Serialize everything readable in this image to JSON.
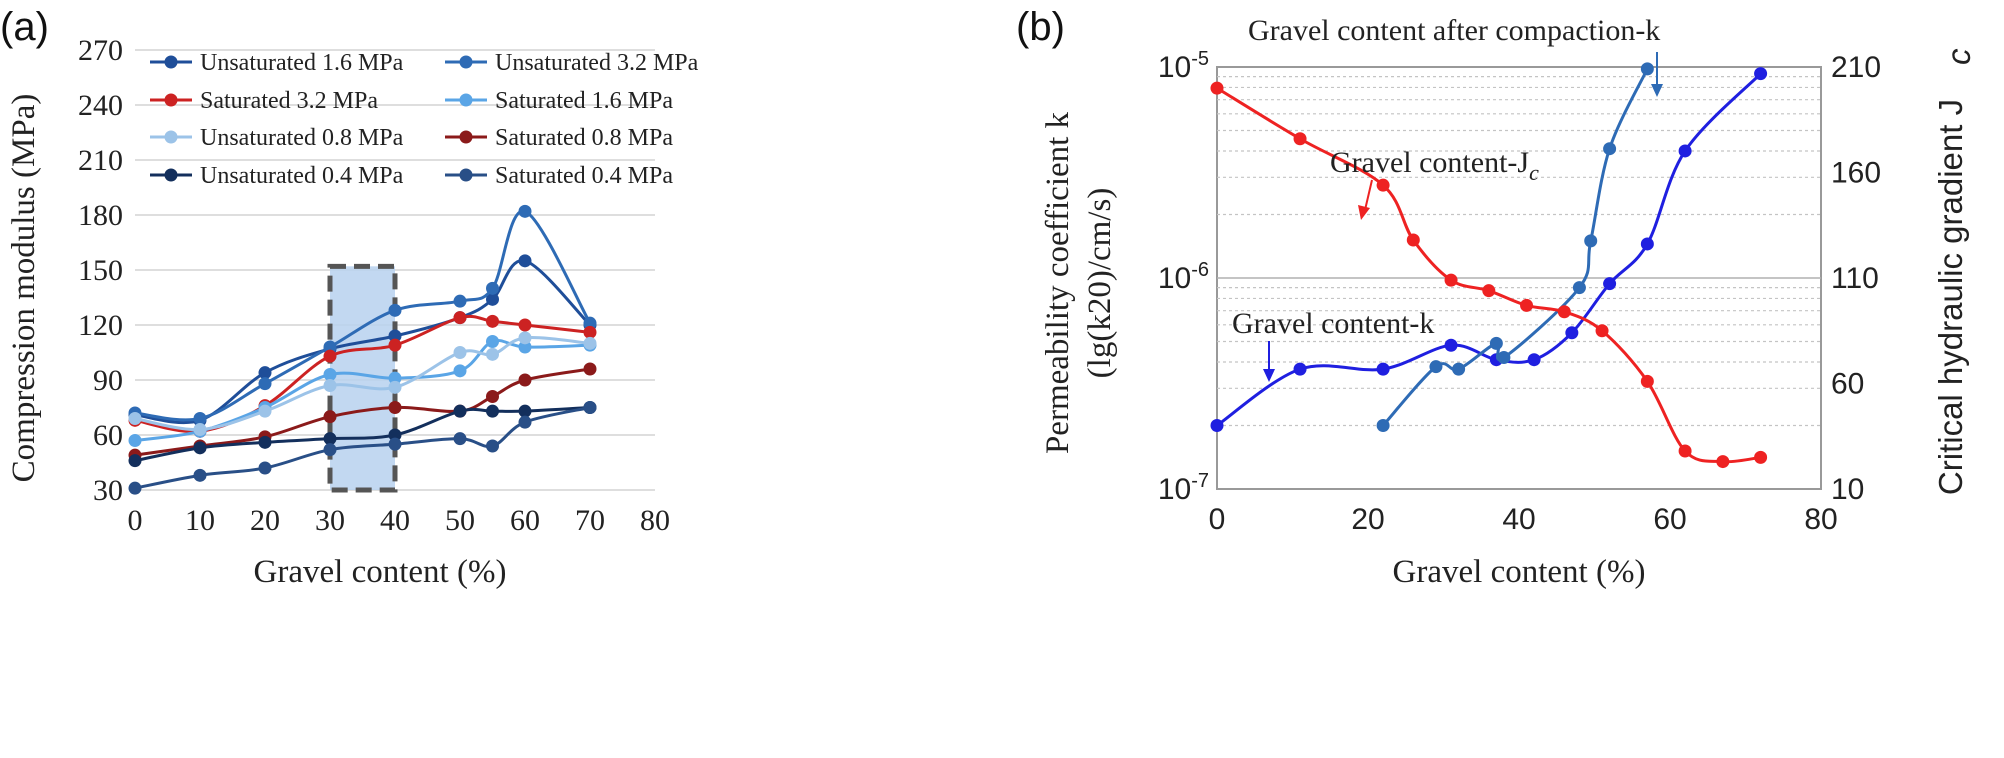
{
  "panel_a": {
    "label": "(a)",
    "xlabel": "Gravel content (%)",
    "ylabel": "Compression modulus (MPa)",
    "x_ticks": [
      "0",
      "10",
      "20",
      "30",
      "40",
      "50",
      "60",
      "70",
      "80"
    ],
    "y_ticks": [
      "30",
      "60",
      "90",
      "120",
      "150",
      "180",
      "210",
      "240",
      "270"
    ]
  },
  "panel_b": {
    "label": "(b)",
    "xlabel": "Gravel content (%)",
    "ylabel_left_1": "Permeability coefficient k",
    "ylabel_left_2": "(lg(k20)/cm/s)",
    "ylabel_right": "Critical hydraulic gradient J",
    "ylabel_right_sub": "c",
    "x_ticks": [
      "0",
      "20",
      "40",
      "60",
      "80"
    ],
    "y_left_ticks": [
      {
        "base": "10",
        "exp": "-5"
      },
      {
        "base": "10",
        "exp": "-6"
      },
      {
        "base": "10",
        "exp": "-7"
      }
    ],
    "y_right_ticks": [
      "210",
      "160",
      "110",
      "60",
      "10"
    ],
    "annotations": {
      "after_compaction": "Gravel content after compaction-k",
      "gravel_jc": "Gravel content-J",
      "gravel_jc_sub": "c",
      "gravel_k": "Gravel content-k"
    }
  },
  "chart_data": [
    {
      "type": "line",
      "title": "",
      "xlabel": "Gravel content (%)",
      "ylabel": "Compression modulus (MPa)",
      "xlim": [
        0,
        80
      ],
      "ylim": [
        30,
        270
      ],
      "grid": true,
      "legend_position": "top-left",
      "highlight_region": {
        "x": [
          30,
          40
        ],
        "y": [
          30,
          152
        ]
      },
      "x": [
        0,
        10,
        20,
        30,
        40,
        50,
        55,
        60,
        70
      ],
      "series": [
        {
          "name": "Unsaturated 1.6 MPa",
          "color": "#1f4e99",
          "values": [
            71,
            68,
            94,
            107,
            114,
            124,
            134,
            155,
            120
          ]
        },
        {
          "name": "Unsaturated 3.2 MPa",
          "color": "#2e6bb5",
          "values": [
            72,
            69,
            88,
            108,
            128,
            133,
            140,
            182,
            121
          ]
        },
        {
          "name": "Saturated 3.2 MPa",
          "color": "#cc2222",
          "values": [
            68,
            62,
            76,
            103,
            109,
            124,
            122,
            120,
            116
          ]
        },
        {
          "name": "Saturated 1.6 MPa",
          "color": "#5aa5e6",
          "values": [
            57,
            62,
            75,
            93,
            91,
            95,
            111,
            108,
            109
          ]
        },
        {
          "name": "Unsaturated 0.8 MPa",
          "color": "#9cc3e8",
          "values": [
            69,
            63,
            73,
            87,
            86,
            105,
            104,
            113,
            110
          ]
        },
        {
          "name": "Saturated 0.8 MPa",
          "color": "#8b1a1a",
          "values": [
            49,
            54,
            59,
            70,
            75,
            73,
            81,
            90,
            96
          ]
        },
        {
          "name": "Unsaturated 0.4 MPa",
          "color": "#132f5c",
          "values": [
            46,
            53,
            56,
            58,
            60,
            73,
            73,
            73,
            75
          ]
        },
        {
          "name": "Saturated 0.4 MPa",
          "color": "#294f87",
          "values": [
            31,
            38,
            42,
            52,
            55,
            58,
            54,
            67,
            75
          ]
        }
      ]
    },
    {
      "type": "line",
      "title": "",
      "xlabel": "Gravel content (%)",
      "ylabel_left": "Permeability coefficient k (lg(k20)/cm/s)",
      "ylabel_right": "Critical hydraulic gradient Jc",
      "xlim": [
        0,
        80
      ],
      "ylim_left": [
        1e-07,
        1e-05
      ],
      "y_left_scale": "log",
      "ylim_right": [
        10,
        210
      ],
      "grid": true,
      "series": [
        {
          "name": "Gravel content-k",
          "axis": "left",
          "color": "#1f1fe0",
          "x": [
            0,
            11,
            22,
            31,
            37,
            42,
            47,
            52,
            57,
            62,
            72
          ],
          "y": [
            2e-07,
            3.7e-07,
            3.7e-07,
            4.8e-07,
            4.1e-07,
            4.1e-07,
            5.5e-07,
            9.4e-07,
            1.45e-06,
            4e-06,
            9.3e-06
          ]
        },
        {
          "name": "Gravel content after compaction-k",
          "axis": "left",
          "color": "#2e6bb5",
          "x": [
            22,
            29,
            32,
            37,
            38,
            48,
            49.5,
            52,
            57
          ],
          "y": [
            2e-07,
            3.8e-07,
            3.7e-07,
            4.9e-07,
            4.2e-07,
            9e-07,
            1.5e-06,
            4.1e-06,
            9.8e-06
          ]
        },
        {
          "name": "Gravel content-Jc",
          "axis": "right",
          "color": "#ee2222",
          "x": [
            0,
            11,
            22,
            26,
            31,
            36,
            41,
            46,
            51,
            57,
            62,
            67,
            72
          ],
          "y": [
            200,
            176,
            154,
            128,
            109,
            104,
            97,
            94,
            85,
            61,
            28,
            23,
            25
          ]
        }
      ]
    }
  ]
}
